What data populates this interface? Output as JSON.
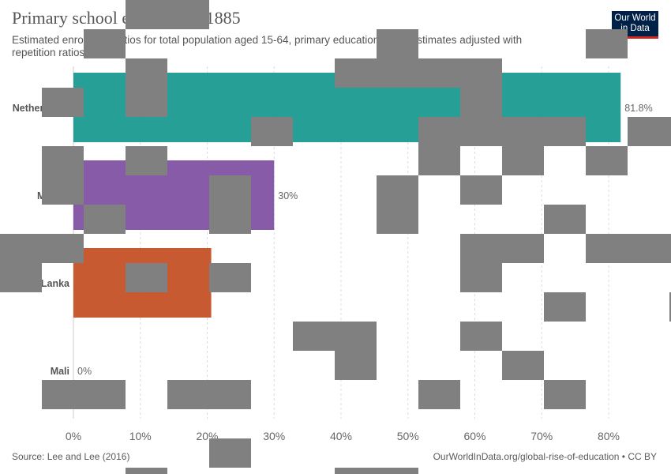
{
  "header": {
    "title": "Primary school enrollment, 1885",
    "subtitle": "Estimated enrollment ratios for total population aged 15-64, primary education level. Estimates adjusted with repetition ratios."
  },
  "logo": {
    "line1": "Our World",
    "line2": "in Data",
    "bg_color": "#002147",
    "accent_color": "#ce261e"
  },
  "footer": {
    "source": "Source: Lee and Lee (2016)",
    "link": "OurWorldInData.org/global-rise-of-education • CC BY"
  },
  "chart_data": {
    "type": "bar",
    "orientation": "horizontal",
    "categories": [
      "Netherlands",
      "Malawi",
      "Sri Lanka",
      "Mali"
    ],
    "values": [
      81.8,
      30,
      20.6,
      0
    ],
    "value_labels": [
      "81.8%",
      "30%",
      "",
      "0%"
    ],
    "colors": [
      "#13988d",
      "#7e4da1",
      "#c24c20",
      "#cccccc"
    ],
    "xlim": [
      0,
      80
    ],
    "ticks": [
      0,
      10,
      20,
      30,
      40,
      50,
      60,
      70,
      80
    ],
    "tick_labels": [
      "0%",
      "10%",
      "20%",
      "30%",
      "40%",
      "50%",
      "60%",
      "70%",
      "80%"
    ],
    "grid": "vertical-dashed",
    "title": "Primary school enrollment, 1885",
    "xlabel": "",
    "ylabel": ""
  }
}
